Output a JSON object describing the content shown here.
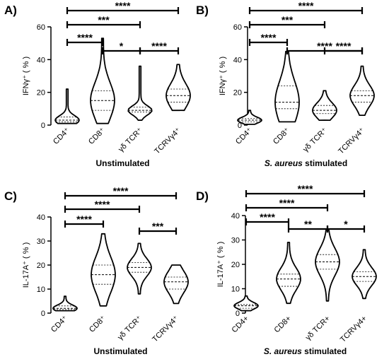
{
  "chart_data": [
    {
      "type": "violin",
      "panel_label": "A)",
      "ylabel": "IFNγ⁺ ( % )",
      "xlabel": "Unstimulated",
      "xlabel_italic_part": "",
      "ylim": [
        0,
        60
      ],
      "yticks": [
        0,
        20,
        40,
        60
      ],
      "categories": [
        "CD4⁺",
        "CD8⁺",
        "γδ TCR⁺",
        "TCRVγ4⁺"
      ],
      "series": [
        {
          "q1": 2,
          "median": 3,
          "q3": 5,
          "min": 1,
          "max": 22
        },
        {
          "q1": 9,
          "median": 15,
          "q3": 21,
          "min": 1,
          "max": 53
        },
        {
          "q1": 8,
          "median": 9,
          "q3": 11,
          "min": 3,
          "max": 36
        },
        {
          "q1": 14,
          "median": 18,
          "q3": 22,
          "min": 9,
          "max": 37
        }
      ],
      "comparisons": [
        {
          "from": 0,
          "to": 3,
          "label": "****"
        },
        {
          "from": 0,
          "to": 2,
          "label": "***"
        },
        {
          "from": 0,
          "to": 1,
          "label": "****"
        },
        {
          "from": 1,
          "to": 2,
          "label": "*"
        },
        {
          "from": 2,
          "to": 3,
          "label": "****"
        }
      ]
    },
    {
      "type": "violin",
      "panel_label": "B)",
      "ylabel": "IFNγ⁺ ( % )",
      "xlabel": "stimulated",
      "xlabel_italic_part": "S. aureus",
      "ylim": [
        0,
        60
      ],
      "yticks": [
        0,
        20,
        40,
        60
      ],
      "categories": [
        "CD4⁺",
        "CD8⁺",
        "γδ TCR⁺",
        "TCRVγ4⁺"
      ],
      "series": [
        {
          "q1": 2,
          "median": 3,
          "q3": 4,
          "min": 0.5,
          "max": 9
        },
        {
          "q1": 10,
          "median": 14,
          "q3": 24,
          "min": 2,
          "max": 45
        },
        {
          "q1": 7,
          "median": 9,
          "q3": 12,
          "min": 3,
          "max": 21
        },
        {
          "q1": 14,
          "median": 18,
          "q3": 21,
          "min": 6,
          "max": 36
        }
      ],
      "comparisons": [
        {
          "from": 0,
          "to": 3,
          "label": "****"
        },
        {
          "from": 0,
          "to": 2,
          "label": "***"
        },
        {
          "from": 0,
          "to": 1,
          "label": "****"
        },
        {
          "from": 1,
          "to": 3,
          "label": "****"
        },
        {
          "from": 2,
          "to": 3,
          "label": "****"
        }
      ]
    },
    {
      "type": "violin",
      "panel_label": "C)",
      "ylabel": "IL-17A⁺ ( % )",
      "xlabel": "Unstimulated",
      "xlabel_italic_part": "",
      "ylim": [
        0,
        40
      ],
      "yticks": [
        0,
        10,
        20,
        30,
        40
      ],
      "categories": [
        "CD4⁺",
        "CD8⁺",
        "γδ TCR⁺",
        "TCRVγ4⁺"
      ],
      "series": [
        {
          "q1": 1.5,
          "median": 2,
          "q3": 3,
          "min": 1,
          "max": 7
        },
        {
          "q1": 12,
          "median": 16,
          "q3": 20,
          "min": 3,
          "max": 33
        },
        {
          "q1": 17,
          "median": 19,
          "q3": 21,
          "min": 8,
          "max": 29
        },
        {
          "q1": 10,
          "median": 13,
          "q3": 15,
          "min": 4,
          "max": 20
        }
      ],
      "comparisons": [
        {
          "from": 0,
          "to": 3,
          "label": "****"
        },
        {
          "from": 0,
          "to": 2,
          "label": "****"
        },
        {
          "from": 0,
          "to": 1,
          "label": "****"
        },
        {
          "from": 2,
          "to": 3,
          "label": "***"
        }
      ]
    },
    {
      "type": "violin",
      "panel_label": "D)",
      "ylabel": "IL-17A⁺ ( % )",
      "xlabel": "stimulated",
      "xlabel_italic_part": "S. aureus",
      "ylim": [
        0,
        40
      ],
      "yticks": [
        0,
        10,
        20,
        30,
        40
      ],
      "categories": [
        "CD4+",
        "CD8+",
        "γδ TCR+",
        "TCRVγ4+"
      ],
      "series": [
        {
          "q1": 2,
          "median": 3,
          "q3": 3.5,
          "min": 1,
          "max": 7
        },
        {
          "q1": 11,
          "median": 14,
          "q3": 16,
          "min": 4,
          "max": 29
        },
        {
          "q1": 18,
          "median": 21,
          "q3": 24,
          "min": 5,
          "max": 34
        },
        {
          "q1": 13,
          "median": 15,
          "q3": 17,
          "min": 6,
          "max": 26
        }
      ],
      "comparisons": [
        {
          "from": 0,
          "to": 3,
          "label": "****"
        },
        {
          "from": 0,
          "to": 2,
          "label": "****"
        },
        {
          "from": 0,
          "to": 1,
          "label": "****"
        },
        {
          "from": 1,
          "to": 2,
          "label": "**"
        },
        {
          "from": 2,
          "to": 3,
          "label": "*"
        }
      ]
    }
  ]
}
